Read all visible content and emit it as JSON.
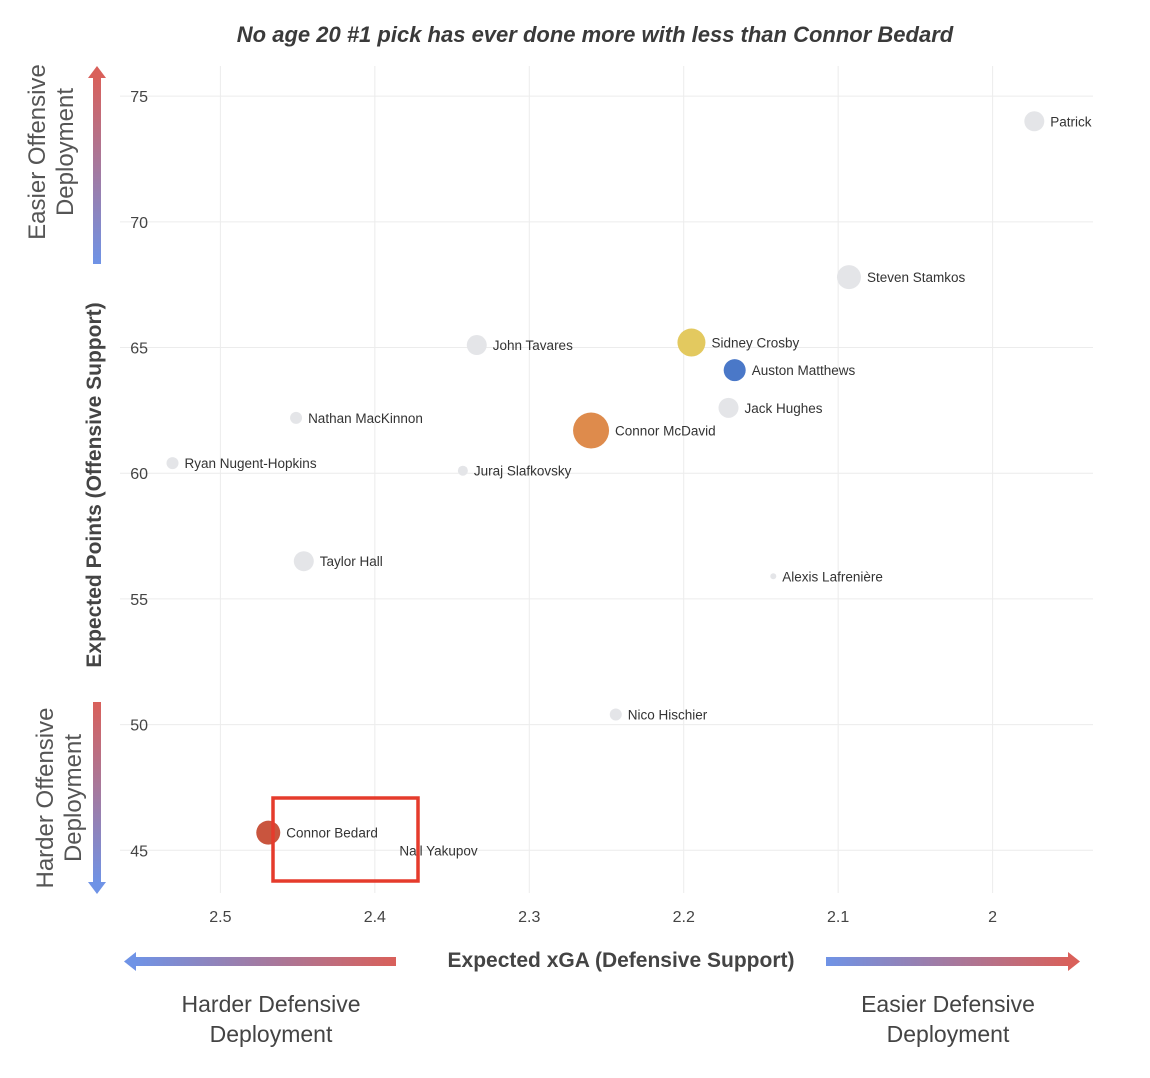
{
  "chart_data": {
    "type": "scatter",
    "title": "No age 20 #1 pick has ever done more with less than Connor Bedard",
    "xlabel": "Expected xGA (Defensive Support)",
    "ylabel": "Expected Points (Offensive Support)",
    "xlim": [
      2.565,
      1.935
    ],
    "ylim": [
      43.3,
      76.2
    ],
    "x_reversed": true,
    "grid": true,
    "xticks": [
      2.5,
      2.4,
      2.3,
      2.2,
      2.1,
      2
    ],
    "xtick_labels": [
      "2.5",
      "2.4",
      "2.3",
      "2.2",
      "2.1",
      "2"
    ],
    "yticks": [
      45,
      50,
      55,
      60,
      65,
      70,
      75
    ],
    "ytick_labels": [
      "45",
      "50",
      "55",
      "60",
      "65",
      "70",
      "75"
    ],
    "points": [
      {
        "name": "Patrick",
        "x": 1.973,
        "y": 74.0,
        "size": 10,
        "color": "#e4e5e8"
      },
      {
        "name": "Steven Stamkos",
        "x": 2.093,
        "y": 67.8,
        "size": 12,
        "color": "#e4e5e8"
      },
      {
        "name": "John Tavares",
        "x": 2.334,
        "y": 65.1,
        "size": 10,
        "color": "#e4e5e8"
      },
      {
        "name": "Sidney Crosby",
        "x": 2.195,
        "y": 65.2,
        "size": 14,
        "color": "#e3c95f"
      },
      {
        "name": "Auston Matthews",
        "x": 2.167,
        "y": 64.1,
        "size": 11,
        "color": "#4a78c8"
      },
      {
        "name": "Jack Hughes",
        "x": 2.171,
        "y": 62.6,
        "size": 10,
        "color": "#e4e5e8"
      },
      {
        "name": "Nathan MacKinnon",
        "x": 2.451,
        "y": 62.2,
        "size": 6,
        "color": "#e4e5e8"
      },
      {
        "name": "Connor McDavid",
        "x": 2.26,
        "y": 61.7,
        "size": 18,
        "color": "#de8b4c"
      },
      {
        "name": "Ryan Nugent-Hopkins",
        "x": 2.531,
        "y": 60.4,
        "size": 6,
        "color": "#e4e5e8"
      },
      {
        "name": "Juraj Slafkovsky",
        "x": 2.343,
        "y": 60.1,
        "size": 5,
        "color": "#e4e5e8"
      },
      {
        "name": "Taylor Hall",
        "x": 2.446,
        "y": 56.5,
        "size": 10,
        "color": "#e4e5e8"
      },
      {
        "name": "Alexis Lafrenière",
        "x": 2.142,
        "y": 55.9,
        "size": 3,
        "color": "#e4e5e8"
      },
      {
        "name": "Nico Hischier",
        "x": 2.244,
        "y": 50.4,
        "size": 6,
        "color": "#e4e5e8"
      },
      {
        "name": "Connor Bedard",
        "x": 2.469,
        "y": 45.7,
        "size": 12,
        "color": "#c9553e"
      },
      {
        "name": "Nail Yakupov",
        "x": 2.388,
        "y": 45.0,
        "size": 0,
        "color": "#e4e5e8"
      }
    ],
    "highlight": {
      "name": "Connor Bedard",
      "box_color": "#e53b2c"
    }
  },
  "annotations": {
    "y_top": "Easier Offensive Deployment",
    "y_top_lines": [
      "Easier Offensive",
      "Deployment"
    ],
    "y_bottom": "Harder Offensive Deployment",
    "y_bottom_lines": [
      "Harder Offensive",
      "Deployment"
    ],
    "x_left_lines": [
      "Harder Defensive",
      "Deployment"
    ],
    "x_right_lines": [
      "Easier Defensive",
      "Deployment"
    ]
  },
  "colors": {
    "arrow_blue": "#6f93e6",
    "arrow_red": "#d9605a",
    "grid": "#ececec"
  }
}
